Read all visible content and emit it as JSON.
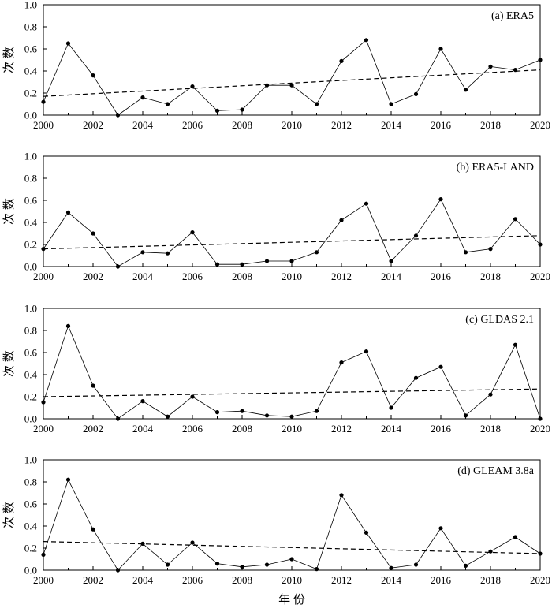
{
  "xlabel": "年 份",
  "chart_data": [
    {
      "type": "line",
      "title": "(a) ERA5",
      "ylabel": "次 数",
      "xlim": [
        2000,
        2020
      ],
      "ylim": [
        0,
        1.0
      ],
      "xticks": [
        "2000",
        "2002",
        "2004",
        "2006",
        "2008",
        "2010",
        "2012",
        "2014",
        "2016",
        "2018",
        "2020"
      ],
      "yticks": [
        "0.0",
        "0.2",
        "0.4",
        "0.6",
        "0.8",
        "1.0"
      ],
      "x": [
        2000,
        2001,
        2002,
        2003,
        2004,
        2005,
        2006,
        2007,
        2008,
        2009,
        2010,
        2011,
        2012,
        2013,
        2014,
        2015,
        2016,
        2017,
        2018,
        2019,
        2020
      ],
      "values": [
        0.12,
        0.65,
        0.36,
        0.0,
        0.16,
        0.1,
        0.26,
        0.04,
        0.05,
        0.27,
        0.27,
        0.1,
        0.49,
        0.68,
        0.1,
        0.19,
        0.6,
        0.23,
        0.44,
        0.41,
        0.5
      ],
      "trend": [
        0.17,
        0.41
      ],
      "grid": false
    },
    {
      "type": "line",
      "title": "(b) ERA5-LAND",
      "ylabel": "次 数",
      "xlim": [
        2000,
        2020
      ],
      "ylim": [
        0,
        1.0
      ],
      "xticks": [
        "2000",
        "2002",
        "2004",
        "2006",
        "2008",
        "2010",
        "2012",
        "2014",
        "2016",
        "2018",
        "2020"
      ],
      "yticks": [
        "0.0",
        "0.2",
        "0.4",
        "0.6",
        "0.8",
        "1.0"
      ],
      "x": [
        2000,
        2001,
        2002,
        2003,
        2004,
        2005,
        2006,
        2007,
        2008,
        2009,
        2010,
        2011,
        2012,
        2013,
        2014,
        2015,
        2016,
        2017,
        2018,
        2019,
        2020
      ],
      "values": [
        0.16,
        0.49,
        0.3,
        0.0,
        0.13,
        0.12,
        0.31,
        0.02,
        0.02,
        0.05,
        0.05,
        0.13,
        0.42,
        0.57,
        0.05,
        0.28,
        0.61,
        0.13,
        0.16,
        0.43,
        0.2
      ],
      "trend": [
        0.16,
        0.28
      ],
      "grid": false
    },
    {
      "type": "line",
      "title": "(c) GLDAS 2.1",
      "ylabel": "次 数",
      "xlim": [
        2000,
        2020
      ],
      "ylim": [
        0,
        1.0
      ],
      "xticks": [
        "2000",
        "2002",
        "2004",
        "2006",
        "2008",
        "2010",
        "2012",
        "2014",
        "2016",
        "2018",
        "2020"
      ],
      "yticks": [
        "0.0",
        "0.2",
        "0.4",
        "0.6",
        "0.8",
        "1.0"
      ],
      "x": [
        2000,
        2001,
        2002,
        2003,
        2004,
        2005,
        2006,
        2007,
        2008,
        2009,
        2010,
        2011,
        2012,
        2013,
        2014,
        2015,
        2016,
        2017,
        2018,
        2019,
        2020
      ],
      "values": [
        0.15,
        0.84,
        0.3,
        0.0,
        0.16,
        0.02,
        0.2,
        0.06,
        0.07,
        0.03,
        0.02,
        0.07,
        0.51,
        0.61,
        0.1,
        0.37,
        0.47,
        0.03,
        0.22,
        0.67,
        0.0
      ],
      "trend": [
        0.2,
        0.27
      ],
      "grid": false
    },
    {
      "type": "line",
      "title": "(d) GLEAM 3.8a",
      "ylabel": "次 数",
      "xlim": [
        2000,
        2020
      ],
      "ylim": [
        0,
        1.0
      ],
      "xticks": [
        "2000",
        "2002",
        "2004",
        "2006",
        "2008",
        "2010",
        "2012",
        "2014",
        "2016",
        "2018",
        "2020"
      ],
      "yticks": [
        "0.0",
        "0.2",
        "0.4",
        "0.6",
        "0.8",
        "1.0"
      ],
      "x": [
        2000,
        2001,
        2002,
        2003,
        2004,
        2005,
        2006,
        2007,
        2008,
        2009,
        2010,
        2011,
        2012,
        2013,
        2014,
        2015,
        2016,
        2017,
        2018,
        2019,
        2020
      ],
      "values": [
        0.14,
        0.82,
        0.37,
        0.0,
        0.24,
        0.05,
        0.25,
        0.06,
        0.03,
        0.05,
        0.1,
        0.01,
        0.68,
        0.34,
        0.02,
        0.05,
        0.38,
        0.04,
        0.17,
        0.3,
        0.15
      ],
      "trend": [
        0.26,
        0.15
      ],
      "grid": false
    }
  ]
}
